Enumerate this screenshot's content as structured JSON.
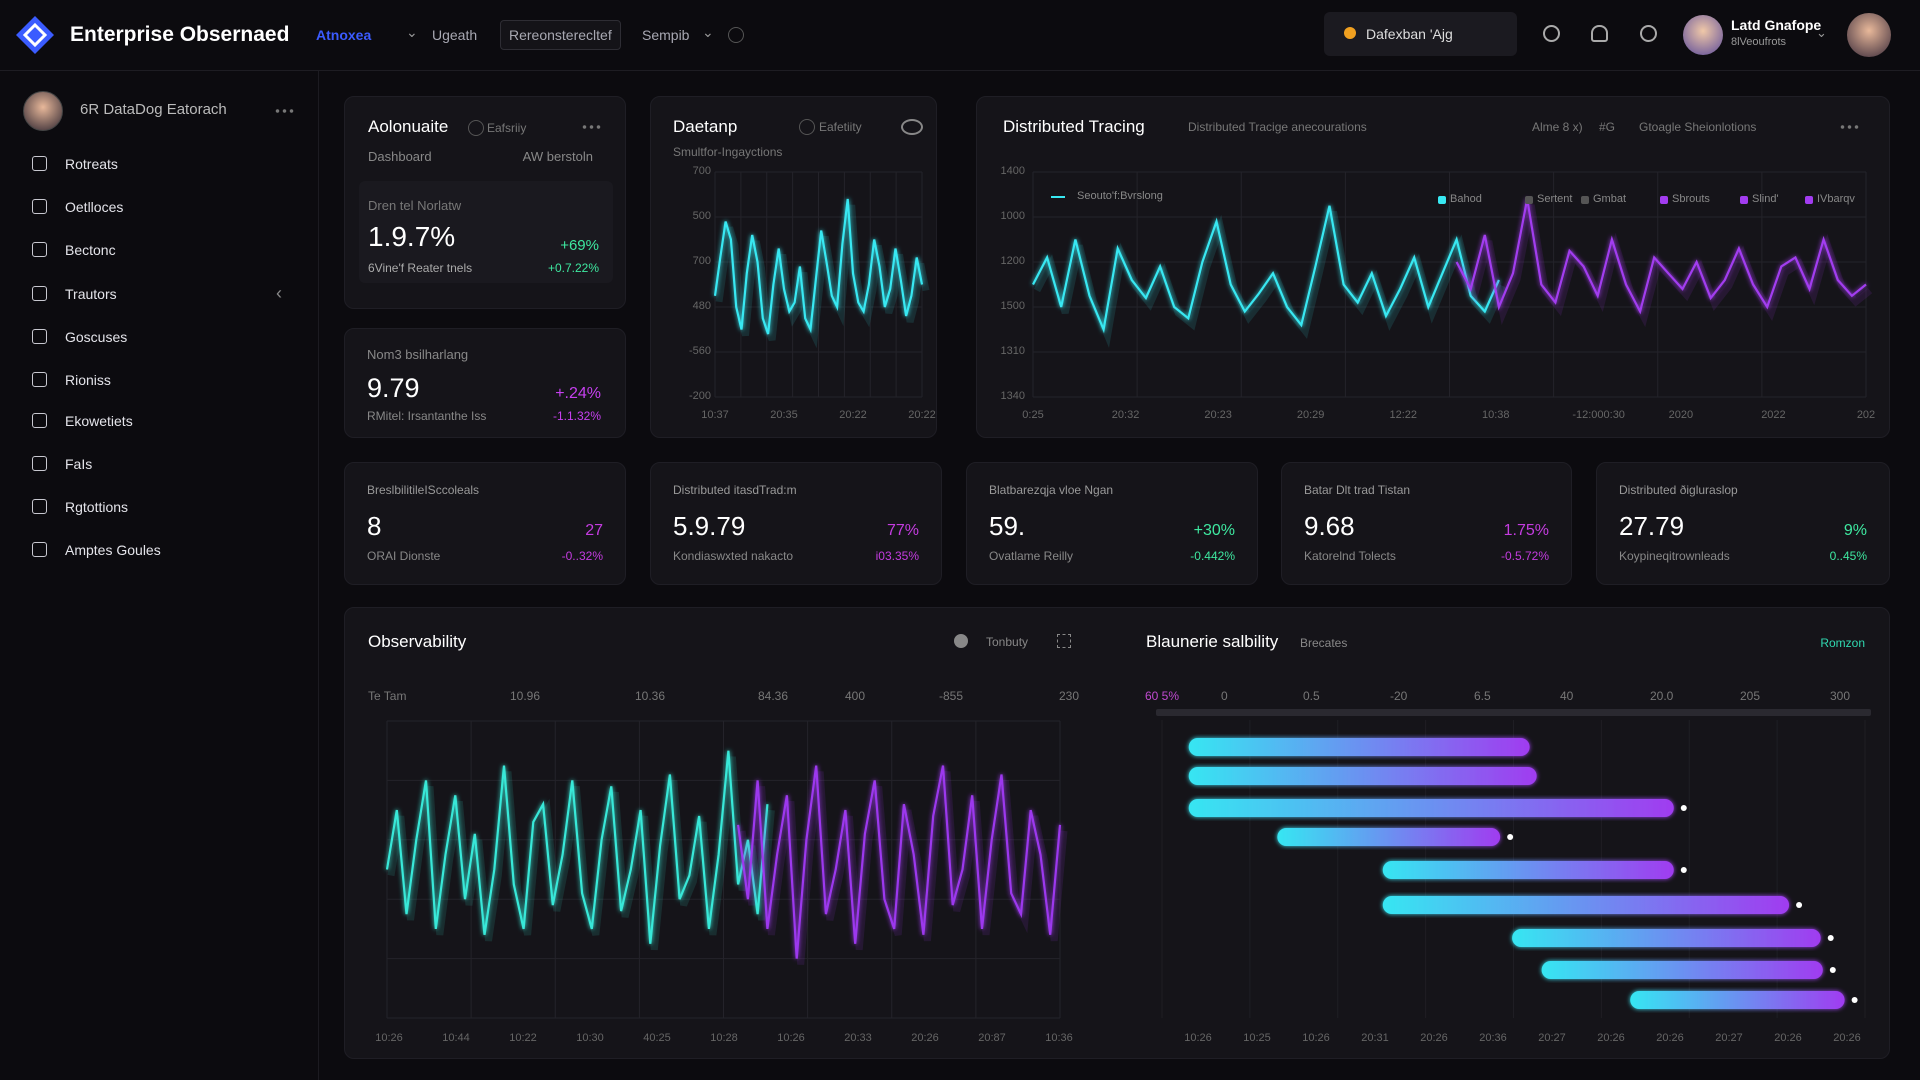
{
  "header": {
    "brand": "Enterprise Obsernaed",
    "nav": [
      "Atnoxea",
      "Ugeath",
      "Rereonsterecltef",
      "Sempib"
    ],
    "search": "Dafexban 'Ajg",
    "user_name": "Latd Gnafope",
    "user_sub": "8lVeoufrots"
  },
  "sidebar": {
    "profile": "6R DataDog Eatorach",
    "items": [
      "Rotreats",
      "Oetlloces",
      "Bectonc",
      "Trautors",
      "Goscuses",
      "Rioniss",
      "Ekowetiets",
      "FaIs",
      "Rgtottions",
      "Amptes Goules"
    ]
  },
  "summary_cards": [
    {
      "title": "Aolonuaite",
      "tag": "Eafsriiy",
      "sub_left": "Dashboard",
      "sub_right": "AW berstoln",
      "label": "Dren tel Norlatw",
      "value": "1.9.7%",
      "caption": "6Vine'f Reater tnels",
      "delta": "+69%",
      "delta2": "+0.7.22%",
      "color": "#3ee8a0"
    },
    {
      "label": "Nom3 bsilharlang",
      "value": 9.79,
      "caption": "RMitel: Irsantanthe Iss",
      "delta": "+.24%",
      "delta2": "-1.1.32%",
      "color": "#c640f0"
    }
  ],
  "kpis": [
    {
      "label": "BreslbilitileISccoleals",
      "value": 8,
      "caption": "ORAI Dionste",
      "delta": "27",
      "delta2": "-0..32%",
      "color": "#c43ce0"
    },
    {
      "label": "Distributed itasdTrad:m",
      "value": "5.9.79",
      "caption": "Kondiaswxted nakacto",
      "delta": "77%",
      "delta2": "i03.35%",
      "color": "#c43ce0"
    },
    {
      "label": "Blatbarezqja vloe Ngan",
      "value": "59.",
      "caption": "Ovatlame Reilly",
      "delta": "+30%",
      "delta2": "-0.442%",
      "color": "#3ee8a0"
    },
    {
      "label": "Batar Dlt trad Tistan",
      "value": 9.68,
      "caption": "Katorelnd Tolects",
      "delta": "1.75%",
      "delta2": "-0.5.72%",
      "color": "#c43ce0"
    },
    {
      "label": "Distributed ðigluraslop",
      "value": 27.79,
      "caption": "Koypineqitrownleads",
      "delta": "9%",
      "delta2": "0..45%",
      "color": "#3ee8a0"
    }
  ],
  "charts": [
    {
      "type": "line",
      "title": "Daetanp",
      "tag": "Eafetiity",
      "subtitle": "Smultfor-Ingayctions",
      "ylabels": [
        "700",
        "500",
        "700",
        "480",
        "-560",
        "-200"
      ],
      "xlabels": [
        "10:37",
        "20:35",
        "20:22",
        "20:22"
      ],
      "ylim": [
        0,
        100
      ],
      "series": [
        {
          "color": "#38e8f2",
          "values": [
            45,
            62,
            78,
            70,
            40,
            30,
            55,
            72,
            60,
            35,
            28,
            50,
            66,
            48,
            38,
            42,
            58,
            35,
            30,
            52,
            74,
            60,
            45,
            40,
            68,
            88,
            55,
            42,
            38,
            50,
            70,
            58,
            40,
            48,
            66,
            52,
            36,
            45,
            62,
            50
          ]
        }
      ]
    },
    {
      "type": "line",
      "title": "Distributed Tracing",
      "subtitle": "Distributed Tracige anecourations",
      "header_items": [
        "Alme 8 x)",
        "#G",
        "Gtoagle Sheionlotions"
      ],
      "legend_title": "Seouto'f:Bvrslong",
      "legend": [
        "Bahod",
        "Sertent",
        "Gmbat",
        "Sbrouts",
        "Slind'",
        "IVbarqv"
      ],
      "ylabels": [
        "1400",
        "1000",
        "1200",
        "1500",
        "1310",
        "1340"
      ],
      "xlabels": [
        "0:25",
        "20:32",
        "20:23",
        "20:29",
        "12:22",
        "10:38",
        "-12:000:30",
        "2020",
        "2022",
        "202"
      ],
      "ylim": [
        0,
        100
      ],
      "series": [
        {
          "color": "#38e8f2",
          "values": [
            50,
            62,
            40,
            70,
            45,
            30,
            66,
            52,
            44,
            58,
            40,
            35,
            60,
            78,
            50,
            38,
            46,
            55,
            40,
            32,
            58,
            85,
            50,
            42,
            55,
            36,
            48,
            62,
            40,
            55,
            70,
            45,
            38,
            52,
            null,
            null,
            null,
            null,
            null,
            null,
            null,
            null,
            null,
            null,
            null,
            null,
            null,
            null,
            null,
            null,
            null,
            null,
            null,
            null,
            null,
            null,
            null,
            null,
            null,
            null
          ]
        },
        {
          "color": "#a23cf0",
          "values": [
            null,
            null,
            null,
            null,
            null,
            null,
            null,
            null,
            null,
            null,
            null,
            null,
            null,
            null,
            null,
            null,
            null,
            null,
            null,
            null,
            null,
            null,
            null,
            null,
            null,
            null,
            null,
            null,
            null,
            null,
            60,
            48,
            72,
            40,
            55,
            88,
            50,
            42,
            65,
            58,
            45,
            70,
            50,
            38,
            62,
            55,
            48,
            60,
            44,
            52,
            66,
            50,
            40,
            58,
            62,
            48,
            70,
            52,
            45,
            50
          ]
        }
      ]
    },
    {
      "type": "line",
      "title": "Observability",
      "control": "Tonbuty",
      "top_labels": [
        "Te Tam",
        "10.96",
        "10.36",
        "84.36",
        "400",
        "-855",
        "230"
      ],
      "xlabels": [
        "10:26",
        "10:44",
        "10:22",
        "10:30",
        "40:25",
        "10:28",
        "10:26",
        "20:33",
        "20:26",
        "20:87",
        "10:36"
      ],
      "ylim": [
        0,
        100
      ],
      "series": [
        {
          "color": "#38e8d8",
          "values": [
            50,
            70,
            35,
            60,
            80,
            30,
            55,
            75,
            40,
            62,
            28,
            50,
            85,
            45,
            30,
            66,
            72,
            38,
            55,
            80,
            42,
            30,
            60,
            78,
            36,
            50,
            70,
            25,
            58,
            82,
            40,
            48,
            68,
            30,
            55,
            90,
            45,
            60,
            35,
            72,
            null,
            null,
            null,
            null,
            null,
            null,
            null,
            null,
            null,
            null,
            null,
            null,
            null,
            null,
            null,
            null,
            null,
            null,
            null,
            null,
            null,
            null,
            null,
            null,
            null,
            null,
            null,
            null,
            null,
            null
          ]
        },
        {
          "color": "#9c38ee",
          "values": [
            null,
            null,
            null,
            null,
            null,
            null,
            null,
            null,
            null,
            null,
            null,
            null,
            null,
            null,
            null,
            null,
            null,
            null,
            null,
            null,
            null,
            null,
            null,
            null,
            null,
            null,
            null,
            null,
            null,
            null,
            null,
            null,
            null,
            null,
            null,
            null,
            65,
            40,
            80,
            30,
            55,
            75,
            20,
            60,
            85,
            35,
            50,
            70,
            25,
            62,
            80,
            40,
            30,
            72,
            55,
            28,
            68,
            85,
            38,
            50,
            75,
            30,
            60,
            82,
            42,
            35,
            70,
            55,
            28,
            65
          ]
        }
      ]
    },
    {
      "type": "gantt",
      "title": "Blaunerie salbility",
      "tag": "Brecates",
      "link": "Romzon",
      "top_labels": [
        "60 5%",
        "0",
        "0.5",
        "-20",
        "6.5",
        "40",
        "20.0",
        "205",
        "300"
      ],
      "xlabels": [
        "10:26",
        "10:25",
        "10:26",
        "20:31",
        "20:26",
        "20:36",
        "20:27",
        "20:26",
        "20:26",
        "20:27",
        "20:26",
        "20:26"
      ],
      "xlim": [
        0,
        100
      ],
      "colors": [
        "#36e6f2",
        "#a03cf0"
      ],
      "bars": [
        {
          "start": 3.8,
          "end": 52.3
        },
        {
          "start": 3.8,
          "end": 53.3
        },
        {
          "start": 3.8,
          "end": 72.8
        },
        {
          "start": 16.4,
          "end": 48.1
        },
        {
          "start": 31.4,
          "end": 72.8
        },
        {
          "start": 31.4,
          "end": 89.2
        },
        {
          "start": 49.8,
          "end": 93.7
        },
        {
          "start": 54,
          "end": 94
        },
        {
          "start": 66.6,
          "end": 97.1
        }
      ]
    }
  ]
}
